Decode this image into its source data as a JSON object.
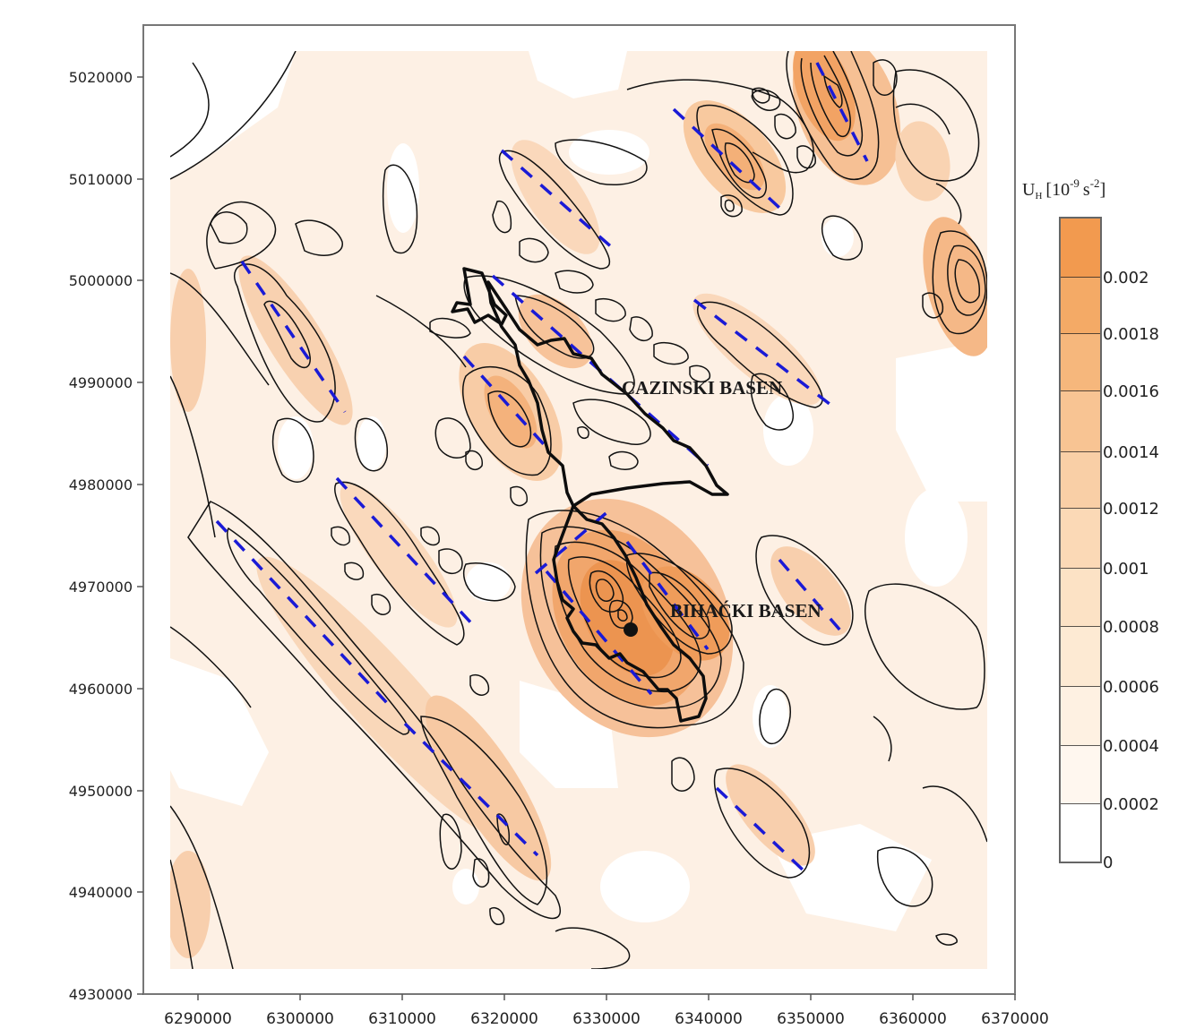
{
  "map": {
    "y_ticks": [
      "5020000",
      "5010000",
      "5000000",
      "4990000",
      "4980000",
      "4970000",
      "4960000",
      "4950000",
      "4940000",
      "4930000"
    ],
    "x_ticks": [
      "6290000",
      "6300000",
      "6310000",
      "6320000",
      "6330000",
      "6340000",
      "6350000",
      "6360000",
      "6370000"
    ],
    "labels": {
      "cazinski": "CAZINSKI BASEN",
      "bihacki": "BIHAĆKI BASEN"
    }
  },
  "legend": {
    "title_main": "U",
    "title_sub": "H",
    "title_units_a": "[10",
    "title_exp1": "-9",
    "title_units_b": "s",
    "title_exp2": "-2",
    "title_close": "]",
    "levels": [
      "0.002",
      "0.0018",
      "0.0016",
      "0.0014",
      "0.0012",
      "0.001",
      "0.0008",
      "0.0006",
      "0.0004",
      "0.0002",
      "0"
    ],
    "colors": [
      "#f29a4f",
      "#f4aa66",
      "#f6b77c",
      "#f8c493",
      "#f9cfa6",
      "#fbd9b6",
      "#fce2c5",
      "#fdead3",
      "#fef1e2",
      "#fff7ef",
      "#ffffff"
    ]
  }
}
